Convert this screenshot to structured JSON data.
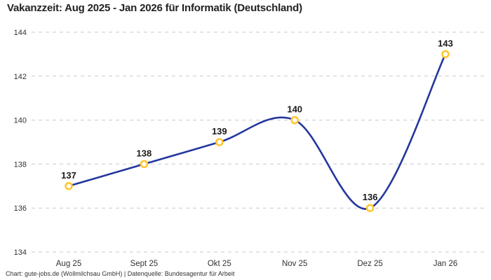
{
  "title": "Vakanzzeit: Aug 2025 - Jan 2026 für Informatik (Deutschland)",
  "footer": "Chart: gute-jobs.de (Wollmilchsau GmbH) | Datenquelle: Bundesagentur für Arbeit",
  "chart_data": {
    "type": "line",
    "title": "Vakanzzeit: Aug 2025 - Jan 2026 für Informatik (Deutschland)",
    "categories": [
      "Aug 25",
      "Sept 25",
      "Okt 25",
      "Nov 25",
      "Dez 25",
      "Jan 26"
    ],
    "series": [
      {
        "name": "Vakanzzeit",
        "values": [
          137,
          138,
          139,
          140,
          136,
          143
        ]
      }
    ],
    "data_labels": [
      "137",
      "138",
      "139",
      "140",
      "136",
      "143"
    ],
    "xlabel": "",
    "ylabel": "",
    "ylim": [
      134,
      144
    ],
    "yticks": [
      134,
      136,
      138,
      140,
      142,
      144
    ],
    "grid": "horizontal-dashed",
    "legend_position": "none",
    "smooth": true,
    "colors": {
      "line": "#24379e",
      "marker_stroke": "#ffc72c",
      "marker_fill": "#ffffff",
      "gridline": "#c9c9c9",
      "title_text": "#222222",
      "axis_text": "#333333",
      "label_text": "#1a1a1a",
      "background": "#ffffff"
    }
  }
}
